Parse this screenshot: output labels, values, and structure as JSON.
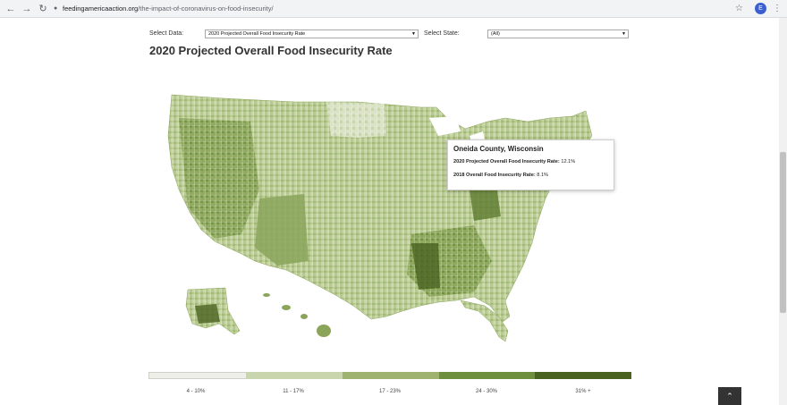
{
  "browser": {
    "url_domain": "feedingamericaaction.org",
    "url_path": "/the-impact-of-coronavirus-on-food-insecurity/",
    "avatar_letter": "E"
  },
  "controls": {
    "data_label": "Select Data:",
    "data_value": "2020 Projected Overall Food Insecurity Rate",
    "state_label": "Select State:",
    "state_value": "(All)"
  },
  "page_title": "2020 Projected Overall Food Insecurity Rate",
  "tooltip": {
    "title": "Oneida County, Wisconsin",
    "line1_label": "2020 Projected Overall Food Insecurity Rate:",
    "line1_value": "12.1%",
    "line2_label": "2018 Overall Food Insecurity Rate:",
    "line2_value": "8.1%"
  },
  "legend": {
    "labels": [
      "4 - 10%",
      "11 - 17%",
      "17 - 23%",
      "24 - 30%",
      "31% +"
    ],
    "colors": [
      "#efefe9",
      "#c9d5ac",
      "#9db36f",
      "#6e8f3d",
      "#4a6220"
    ]
  },
  "icons": {
    "back": "arrow-left-icon",
    "forward": "arrow-right-icon",
    "reload": "reload-icon",
    "lock": "lock-icon",
    "star": "star-icon",
    "menu": "kebab-menu-icon",
    "scroll_top": "chevron-up-icon"
  }
}
